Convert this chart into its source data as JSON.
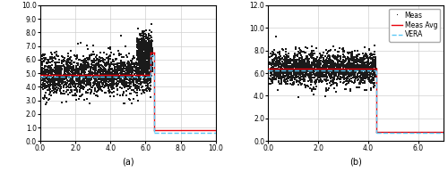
{
  "panel_a": {
    "xlim": [
      0.0,
      10.0
    ],
    "ylim": [
      0.0,
      10.0
    ],
    "xticks": [
      0.0,
      2.0,
      4.0,
      6.0,
      8.0,
      10.0
    ],
    "yticks": [
      0.0,
      1.0,
      2.0,
      3.0,
      4.0,
      5.0,
      6.0,
      7.0,
      8.0,
      9.0,
      10.0
    ],
    "xlabel": "(a)",
    "step_x": 6.3,
    "meas_avg_level1": 4.85,
    "meas_avg_level2": 6.5,
    "meas_avg_level3": 0.82,
    "vera_level1": 4.75,
    "vera_level2": 6.3,
    "vera_level3": 0.6,
    "scatter_phase1": {
      "x_range": [
        0.05,
        6.3
      ],
      "y_center": 4.9,
      "y_std": 0.72,
      "n": 2000
    },
    "scatter_phase2": {
      "x_range": [
        5.5,
        6.4
      ],
      "y_center": 6.5,
      "y_std": 0.75,
      "n": 600
    },
    "scatter_seed": 42
  },
  "panel_b": {
    "xlim": [
      0.0,
      7.0
    ],
    "ylim": [
      0.0,
      12.0
    ],
    "xticks": [
      0.0,
      2.0,
      4.0,
      6.0
    ],
    "yticks": [
      0.0,
      2.0,
      4.0,
      6.0,
      8.0,
      10.0,
      12.0
    ],
    "xlabel": "(b)",
    "step_x": 4.3,
    "meas_avg_level1": 6.4,
    "meas_avg_level2": 0.82,
    "vera_level1": 6.2,
    "vera_level2": 0.72,
    "scatter_phase1": {
      "x_range": [
        0.05,
        4.3
      ],
      "y_center": 6.4,
      "y_std": 0.72,
      "n": 2000
    },
    "scatter_seed": 77
  },
  "legend_labels": [
    "Meas",
    "Meas Avg",
    "VERA"
  ],
  "meas_avg_color": "#e8000a",
  "vera_color": "#5bc8f5",
  "scatter_color": "#1a1a1a",
  "scatter_size": 1.5,
  "line_width": 1.0
}
